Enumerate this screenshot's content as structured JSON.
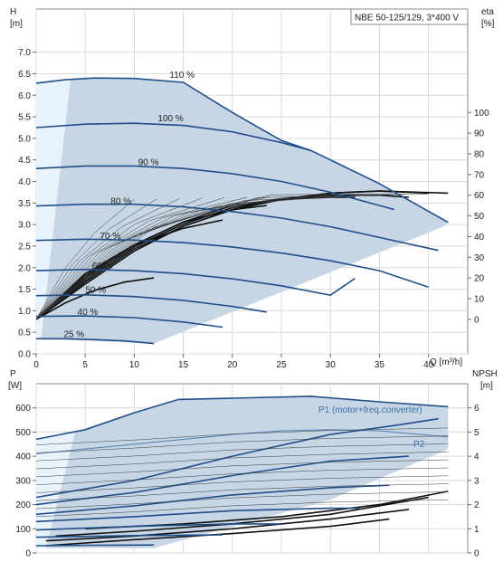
{
  "chart_data": [
    {
      "type": "line",
      "title": "NBE 50-125/129, 3*400 V",
      "xlabel": "Q [m³/h]",
      "ylabel": "H\n[m]",
      "y2label": "eta\n[%]",
      "xlim": [
        0,
        44
      ],
      "ylim": [
        0,
        8
      ],
      "y2lim": [
        -16.7,
        150
      ],
      "x_ticks": [
        0,
        5,
        10,
        15,
        20,
        25,
        30,
        35,
        40
      ],
      "y_ticks": [
        0.0,
        0.5,
        1.0,
        1.5,
        2.0,
        2.5,
        3.0,
        3.5,
        4.0,
        4.5,
        5.0,
        5.5,
        6.0,
        6.5,
        7.0
      ],
      "y2_ticks": [
        0,
        10,
        20,
        30,
        40,
        50,
        60,
        70,
        80,
        90,
        100
      ],
      "grid": true,
      "head_series": [
        {
          "name": "110 %",
          "x": [
            0,
            3,
            6,
            10,
            15,
            20,
            25,
            28,
            35,
            42
          ],
          "y": [
            6.28,
            6.36,
            6.4,
            6.39,
            6.3,
            5.6,
            4.95,
            4.72,
            3.95,
            3.05
          ]
        },
        {
          "name": "100 %",
          "x": [
            0,
            5,
            10,
            15,
            20,
            25,
            28
          ],
          "y": [
            5.25,
            5.33,
            5.35,
            5.3,
            5.15,
            4.9,
            4.72
          ]
        },
        {
          "name": "90 %",
          "x": [
            0,
            5,
            10,
            15,
            20,
            25,
            30,
            36.5
          ],
          "y": [
            4.3,
            4.36,
            4.36,
            4.3,
            4.18,
            4.0,
            3.75,
            3.35
          ]
        },
        {
          "name": "80 %",
          "x": [
            0,
            5,
            10,
            15,
            20,
            25,
            30,
            35,
            41
          ],
          "y": [
            3.43,
            3.47,
            3.47,
            3.41,
            3.3,
            3.15,
            2.95,
            2.7,
            2.4
          ]
        },
        {
          "name": "70 %",
          "x": [
            0,
            5,
            10,
            15,
            20,
            25,
            30,
            35,
            40
          ],
          "y": [
            2.63,
            2.66,
            2.64,
            2.58,
            2.48,
            2.34,
            2.16,
            1.93,
            1.55
          ]
        },
        {
          "name": "60 %",
          "x": [
            0,
            5,
            10,
            15,
            20,
            25,
            30,
            32.5
          ],
          "y": [
            1.93,
            1.96,
            1.93,
            1.86,
            1.74,
            1.58,
            1.36,
            1.75
          ]
        },
        {
          "name": "50 %",
          "x": [
            0,
            5,
            10,
            15,
            20,
            23.5
          ],
          "y": [
            1.35,
            1.37,
            1.33,
            1.24,
            1.1,
            0.97
          ]
        },
        {
          "name": "40 %",
          "x": [
            0,
            5,
            10,
            15,
            19
          ],
          "y": [
            0.87,
            0.88,
            0.84,
            0.74,
            0.62
          ]
        },
        {
          "name": "25 %",
          "x": [
            0,
            3,
            6,
            9,
            12
          ],
          "y": [
            0.35,
            0.35,
            0.33,
            0.3,
            0.24
          ]
        }
      ],
      "eta_series": [
        {
          "x": [
            0,
            3,
            6,
            9,
            12
          ],
          "y": [
            0,
            8,
            14,
            18,
            20
          ]
        },
        {
          "x": [
            0,
            5,
            10,
            15,
            19
          ],
          "y": [
            0,
            22,
            36,
            44,
            48
          ]
        },
        {
          "x": [
            0,
            5,
            10,
            15,
            20,
            23.5
          ],
          "y": [
            0,
            21,
            36,
            47,
            53,
            55
          ]
        },
        {
          "x": [
            0,
            5,
            10,
            15,
            20,
            25,
            30,
            32.5
          ],
          "y": [
            0,
            20,
            36,
            47,
            55,
            58,
            59,
            59
          ]
        },
        {
          "x": [
            0,
            5,
            10,
            15,
            20,
            25,
            30,
            35,
            38
          ],
          "y": [
            0,
            19,
            35,
            46,
            54,
            58,
            60,
            60,
            59
          ]
        },
        {
          "x": [
            0,
            5,
            10,
            15,
            20,
            25,
            30,
            35,
            40
          ],
          "y": [
            0,
            18,
            34,
            45,
            53,
            58,
            61,
            62,
            61
          ]
        },
        {
          "x": [
            0,
            5,
            10,
            15,
            20,
            25,
            30,
            35,
            42
          ],
          "y": [
            0,
            17,
            33,
            45,
            53,
            58,
            61,
            62,
            61
          ]
        }
      ]
    },
    {
      "type": "line",
      "xlabel": "",
      "ylabel": "P\n[W]",
      "y2label": "NPSH\n[m]",
      "xlim": [
        0,
        44
      ],
      "ylim": [
        0,
        700
      ],
      "y2lim": [
        0,
        7
      ],
      "y_ticks": [
        0,
        100,
        200,
        300,
        400,
        500,
        600
      ],
      "y2_ticks": [
        0,
        1,
        2,
        3,
        4,
        5,
        6
      ],
      "grid": true,
      "series_labels": [
        "P1 (motor+freq.converter)",
        "P2"
      ],
      "power_series": [
        {
          "name": "P1 (motor+freq.converter)",
          "x": [
            0,
            5,
            10,
            14.5,
            20,
            28,
            35,
            42
          ],
          "y": [
            470,
            510,
            580,
            635,
            640,
            648,
            625,
            605
          ]
        },
        {
          "name": "P2",
          "x": [
            0,
            5,
            10,
            15,
            20,
            25,
            30,
            35,
            42
          ],
          "y": [
            410,
            430,
            450,
            470,
            490,
            505,
            510,
            505,
            480
          ]
        },
        {
          "x": [
            0,
            10,
            20,
            30,
            37,
            41
          ],
          "y": [
            230,
            300,
            400,
            490,
            530,
            555
          ]
        },
        {
          "x": [
            0,
            10,
            20,
            30,
            38
          ],
          "y": [
            200,
            250,
            320,
            380,
            400
          ]
        },
        {
          "x": [
            0,
            10,
            20,
            30,
            36
          ],
          "y": [
            160,
            195,
            240,
            270,
            280
          ]
        },
        {
          "x": [
            0,
            10,
            20,
            30,
            33
          ],
          "y": [
            130,
            150,
            175,
            185,
            185
          ]
        },
        {
          "x": [
            0,
            10,
            20,
            25
          ],
          "y": [
            95,
            110,
            120,
            120
          ]
        },
        {
          "x": [
            0,
            10,
            19
          ],
          "y": [
            65,
            72,
            75
          ]
        },
        {
          "x": [
            0,
            6,
            12
          ],
          "y": [
            30,
            32,
            33
          ]
        }
      ],
      "npsh_series": [
        {
          "x": [
            5,
            15,
            25,
            35,
            42
          ],
          "y": [
            1.0,
            1.2,
            1.5,
            2.0,
            2.55
          ]
        },
        {
          "x": [
            2,
            10,
            20,
            30,
            40
          ],
          "y": [
            0.7,
            0.9,
            1.2,
            1.6,
            2.3
          ]
        },
        {
          "x": [
            1,
            10,
            20,
            30,
            38
          ],
          "y": [
            0.5,
            0.7,
            1.0,
            1.4,
            1.8
          ]
        },
        {
          "x": [
            1,
            10,
            20,
            30,
            36
          ],
          "y": [
            0.3,
            0.55,
            0.8,
            1.1,
            1.4
          ]
        }
      ]
    }
  ]
}
